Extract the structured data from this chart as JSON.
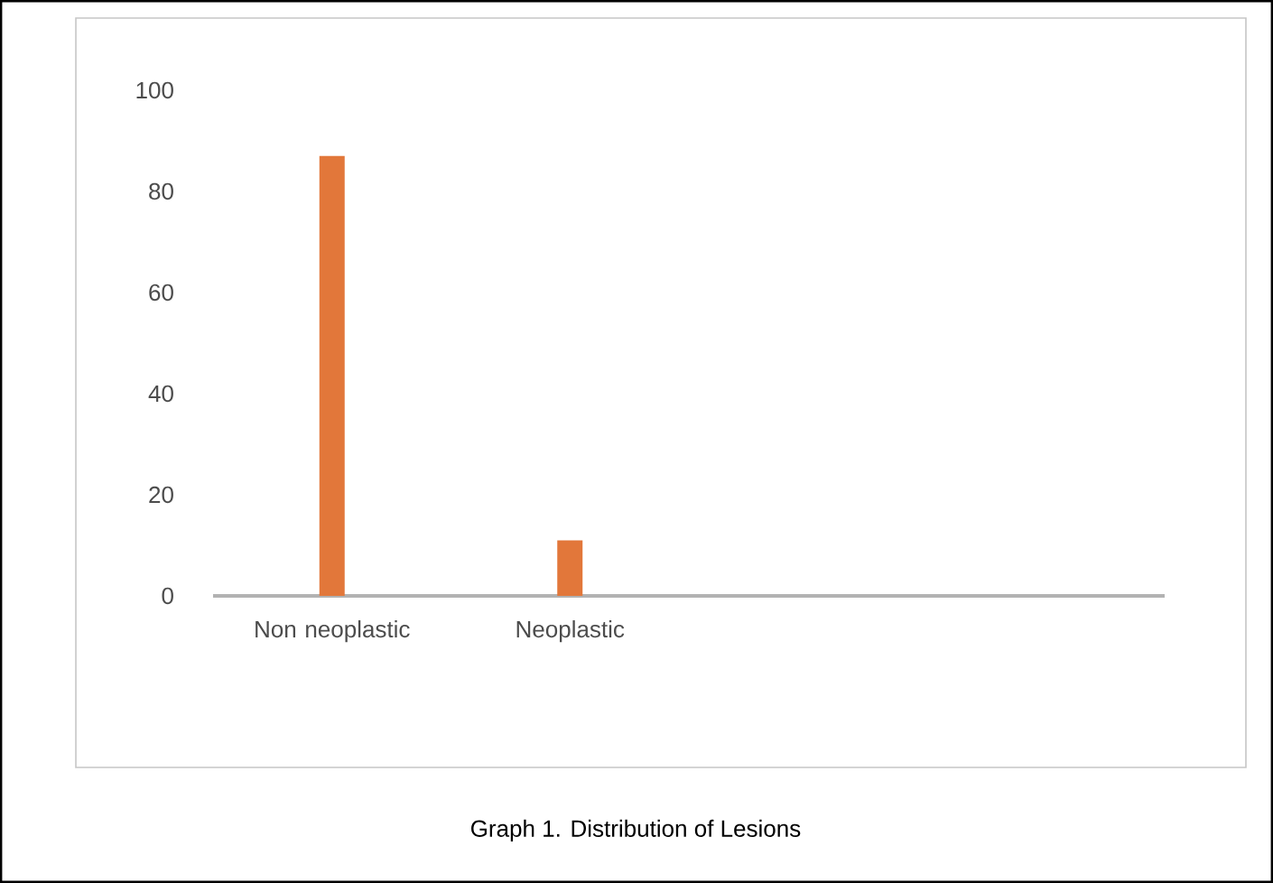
{
  "chart_data": {
    "type": "bar",
    "categories": [
      "Non neoplastic",
      "Neoplastic",
      null,
      null
    ],
    "values": [
      87,
      11,
      null,
      null
    ],
    "color": "#e2773a",
    "ylim": [
      0,
      100
    ],
    "yticks": [
      0,
      20,
      40,
      60,
      80,
      100
    ],
    "grid": false,
    "annotations": [
      "Graph 1. Distribution of Lesions"
    ]
  }
}
